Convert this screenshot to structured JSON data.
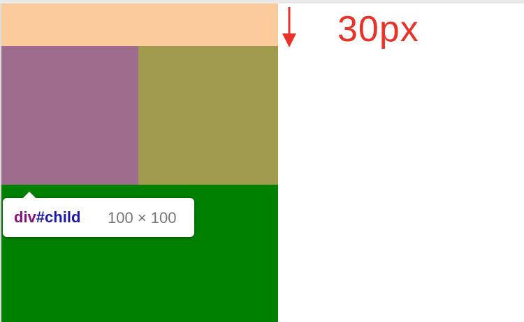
{
  "annotation": {
    "label": "30px",
    "color": "#e8322a",
    "arrow_icon": "down-arrow-icon"
  },
  "boxes": {
    "margin_color": "#fccb9c",
    "child_color": "#9e6d8d",
    "sibling_color": "#a09b4f",
    "parent_color": "#008000"
  },
  "tooltip": {
    "tag": "div",
    "hash": "#",
    "id": "child",
    "size": "100 × 100",
    "tag_color": "#881280",
    "id_color": "#1a1aa6",
    "size_color": "#777777"
  }
}
